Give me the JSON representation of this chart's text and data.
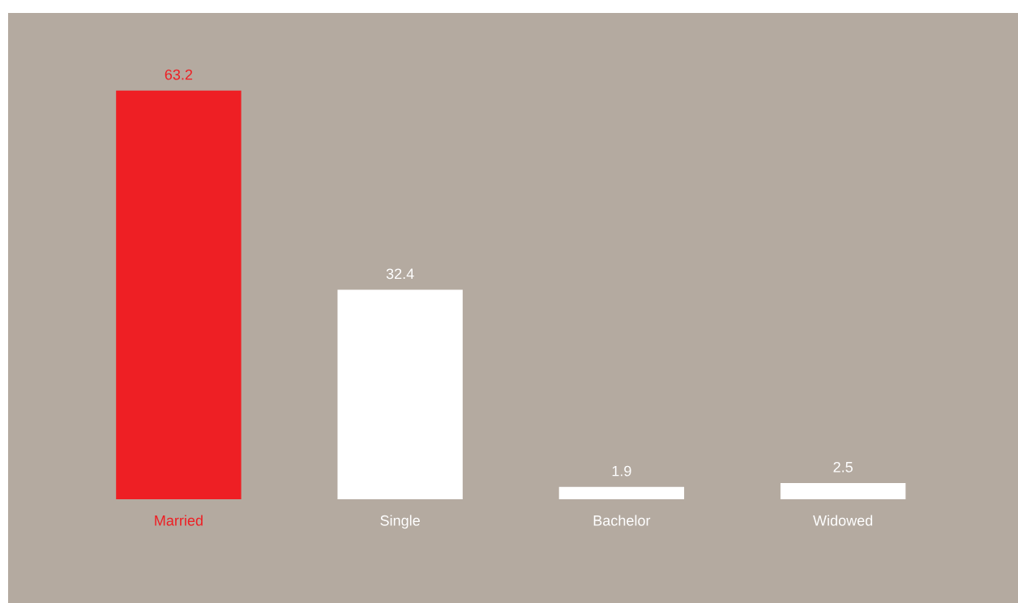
{
  "chart_data": {
    "type": "bar",
    "categories": [
      "Married",
      "Single",
      "Bachelor",
      "Widowed"
    ],
    "values": [
      63.2,
      32.4,
      1.9,
      2.5
    ],
    "colors": [
      "#ee1f24",
      "#ffffff",
      "#ffffff",
      "#ffffff"
    ],
    "data_labels": true
  }
}
